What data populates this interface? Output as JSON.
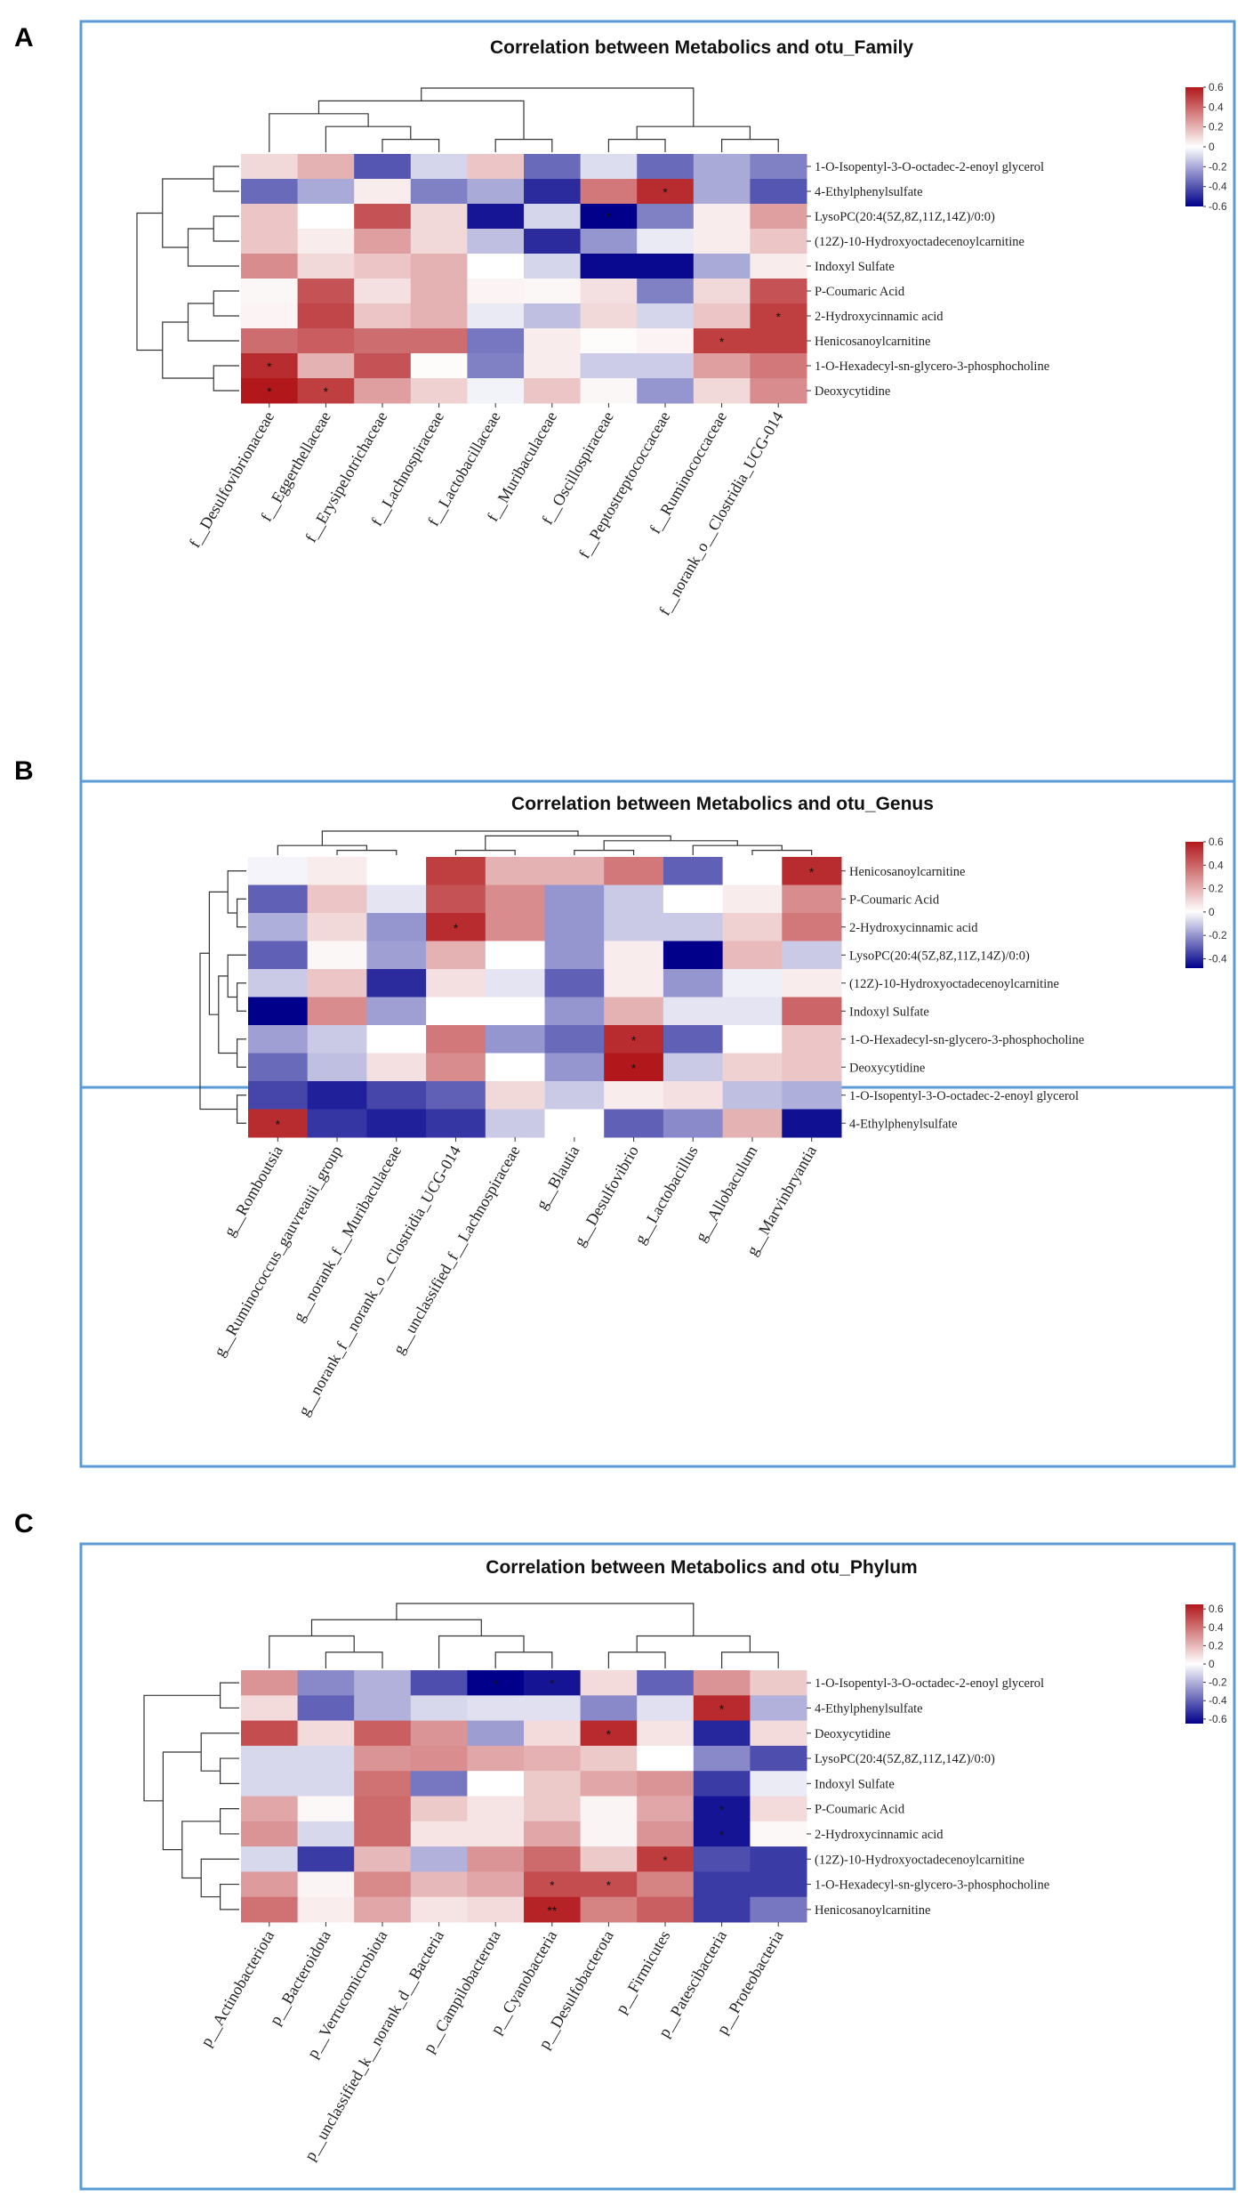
{
  "chart_data": [
    {
      "type": "heatmap",
      "panel_label": "A",
      "title": "Correlation between Metabolics and otu_Family",
      "rows": [
        "1-O-Isopentyl-3-O-octadec-2-enoyl glycerol",
        "4-Ethylphenylsulfate",
        "LysoPC(20:4(5Z,8Z,11Z,14Z)/0:0)",
        "(12Z)-10-Hydroxyoctadecenoylcarnitine",
        "Indoxyl Sulfate",
        "P-Coumaric Acid",
        "2-Hydroxycinnamic acid",
        "Henicosanoylcarnitine",
        "1-O-Hexadecyl-sn-glycero-3-phosphocholine",
        "Deoxycytidine"
      ],
      "columns": [
        "f__Desulfovibrionaceae",
        "f__Eggerthellaceae",
        "f__Erysipelotrichaceae",
        "f__Lachnospiraceae",
        "f__Lactobacillaceae",
        "f__Muribaculaceae",
        "f__Oscillospiraceae",
        "f__Peptostreptococcaceae",
        "f__Ruminococcaceae",
        "f__norank_o__Clostridia_UCG-014"
      ],
      "values": [
        [
          0.1,
          0.2,
          -0.4,
          -0.1,
          0.15,
          -0.35,
          -0.08,
          -0.35,
          -0.2,
          -0.3
        ],
        [
          -0.35,
          -0.2,
          0.05,
          -0.3,
          -0.2,
          -0.5,
          0.35,
          0.55,
          -0.2,
          -0.4
        ],
        [
          0.15,
          0,
          0.45,
          0.1,
          -0.55,
          -0.1,
          -0.62,
          -0.3,
          0.05,
          0.25
        ],
        [
          0.15,
          0.05,
          0.25,
          0.1,
          -0.15,
          -0.5,
          -0.25,
          -0.05,
          0.05,
          0.15
        ],
        [
          0.3,
          0.1,
          0.15,
          0.2,
          0,
          -0.1,
          -0.58,
          -0.58,
          -0.2,
          0.05
        ],
        [
          0.02,
          0.45,
          0.08,
          0.2,
          0.03,
          0.02,
          0.08,
          -0.3,
          0.1,
          0.45
        ],
        [
          0.03,
          0.48,
          0.15,
          0.2,
          -0.05,
          -0.15,
          0.1,
          -0.1,
          0.15,
          0.5
        ],
        [
          0.38,
          0.42,
          0.38,
          0.38,
          -0.32,
          0.05,
          0.01,
          0.03,
          0.5,
          0.5
        ],
        [
          0.55,
          0.2,
          0.45,
          0.01,
          -0.3,
          0.05,
          -0.12,
          -0.12,
          0.25,
          0.35
        ],
        [
          0.6,
          0.5,
          0.25,
          0.12,
          -0.03,
          0.15,
          0.02,
          -0.25,
          0.1,
          0.3
        ]
      ],
      "significance": [
        [
          1,
          7,
          "*"
        ],
        [
          2,
          6,
          "*"
        ],
        [
          6,
          9,
          "*"
        ],
        [
          7,
          8,
          "*"
        ],
        [
          8,
          0,
          "*"
        ],
        [
          9,
          0,
          "*"
        ],
        [
          9,
          1,
          "*"
        ]
      ],
      "color_scale": {
        "min": -0.6,
        "max": 0.6,
        "ticks": [
          0.6,
          0.4,
          0.2,
          0,
          -0.2,
          -0.4,
          -0.6
        ],
        "tick_labels": [
          "0.6",
          "0.4",
          "0.2",
          "0",
          "-0.2",
          "-0.4",
          "-0.6"
        ],
        "high_color": "#b2181b",
        "mid_color": "#ffffff",
        "low_color": "#00008b"
      },
      "row_dendrogram": [
        [
          [
            0,
            1
          ],
          [
            [
              2,
              3
            ],
            4
          ]
        ],
        [
          [
            [
              5,
              6
            ],
            7
          ],
          [
            8,
            9
          ]
        ]
      ],
      "col_dendrogram": [
        [
          [
            0,
            [
              1,
              [
                2,
                3
              ]
            ]
          ],
          [
            4,
            5
          ]
        ],
        [
          [
            6,
            7
          ],
          [
            8,
            9
          ]
        ]
      ]
    },
    {
      "type": "heatmap",
      "panel_label": "B",
      "title": "Correlation between Metabolics and otu_Genus",
      "rows": [
        "Henicosanoylcarnitine",
        "P-Coumaric Acid",
        "2-Hydroxycinnamic acid",
        "LysoPC(20:4(5Z,8Z,11Z,14Z)/0:0)",
        "(12Z)-10-Hydroxyoctadecenoylcarnitine",
        "Indoxyl Sulfate",
        "1-O-Hexadecyl-sn-glycero-3-phosphocholine",
        "Deoxycytidine",
        "1-O-Isopentyl-3-O-octadec-2-enoyl glycerol",
        "4-Ethylphenylsulfate"
      ],
      "columns": [
        "g__Romboutsia",
        "g__Ruminococcus_gauvreauii_group",
        "g__norank_f__Muribaculaceae",
        "g__norank_f__norank_o__Clostridia_UCG-014",
        "g__unclassified_f__Lachnospiraceae",
        "g__Blautia",
        "g__Desulfovibrio",
        "g__Lactobacillus",
        "g__Allobaculum",
        "g__Marvinbryantia"
      ],
      "values": [
        [
          -0.02,
          0.05,
          0,
          0.5,
          0.2,
          0.2,
          0.35,
          -0.3,
          0,
          0.55
        ],
        [
          -0.3,
          0.15,
          -0.05,
          0.45,
          0.3,
          -0.2,
          -0.1,
          0,
          0.05,
          0.3
        ],
        [
          -0.15,
          0.1,
          -0.2,
          0.55,
          0.3,
          -0.2,
          -0.1,
          -0.1,
          0.12,
          0.35
        ],
        [
          -0.3,
          0.02,
          -0.18,
          0.2,
          0,
          -0.2,
          0.05,
          -0.48,
          0.18,
          -0.1
        ],
        [
          -0.1,
          0.15,
          -0.4,
          0.08,
          -0.05,
          -0.3,
          0.05,
          -0.2,
          -0.03,
          0.05
        ],
        [
          -0.48,
          0.3,
          -0.18,
          0,
          0,
          -0.2,
          0.2,
          -0.05,
          -0.05,
          0.4
        ],
        [
          -0.18,
          -0.1,
          0,
          0.35,
          -0.2,
          -0.28,
          0.55,
          -0.3,
          0,
          0.15
        ],
        [
          -0.28,
          -0.12,
          0.08,
          0.3,
          0,
          -0.2,
          0.6,
          -0.1,
          0.12,
          0.15
        ],
        [
          -0.35,
          -0.42,
          -0.35,
          -0.3,
          0.1,
          -0.1,
          0.05,
          0.08,
          -0.12,
          -0.15
        ],
        [
          0.55,
          -0.38,
          -0.42,
          -0.38,
          -0.1,
          0,
          -0.3,
          -0.22,
          0.2,
          -0.45
        ]
      ],
      "significance": [
        [
          0,
          9,
          "*"
        ],
        [
          2,
          3,
          "*"
        ],
        [
          6,
          6,
          "*"
        ],
        [
          7,
          6,
          "*"
        ],
        [
          9,
          0,
          "*"
        ]
      ],
      "color_scale": {
        "min": -0.48,
        "max": 0.6,
        "ticks": [
          0.6,
          0.4,
          0.2,
          0,
          -0.2,
          -0.4
        ],
        "tick_labels": [
          "0.6",
          "0.4",
          "0.2",
          "0",
          "-0.2",
          "-0.4"
        ],
        "high_color": "#b2181b",
        "mid_color": "#ffffff",
        "low_color": "#00008b"
      },
      "row_dendrogram": [
        [
          [
            0,
            [
              1,
              2
            ]
          ],
          [
            [
              3,
              [
                4,
                5
              ]
            ],
            [
              6,
              7
            ]
          ]
        ],
        [
          8,
          9
        ]
      ],
      "col_dendrogram": [
        [
          0,
          [
            1,
            2
          ]
        ],
        [
          [
            3,
            4
          ],
          [
            [
              5,
              6
            ],
            [
              7,
              [
                8,
                9
              ]
            ]
          ]
        ]
      ]
    },
    {
      "type": "heatmap",
      "panel_label": "C",
      "title": "Correlation between Metabolics and otu_Phylum",
      "rows": [
        "1-O-Isopentyl-3-O-octadec-2-enoyl glycerol",
        "4-Ethylphenylsulfate",
        "Deoxycytidine",
        "LysoPC(20:4(5Z,8Z,11Z,14Z)/0:0)",
        "Indoxyl Sulfate",
        "P-Coumaric Acid",
        "2-Hydroxycinnamic acid",
        "(12Z)-10-Hydroxyoctadecenoylcarnitine",
        "1-O-Hexadecyl-sn-glycero-3-phosphocholine",
        "Henicosanoylcarnitine"
      ],
      "columns": [
        "p__Actinobacteriota",
        "p__Bacteroidota",
        "p__Verrucomicrobiota",
        "p__unclassified_k__norank_d__Bacteria",
        "p__Campilobacterota",
        "p__Cyanobacteria",
        "p__Desulfobacterota",
        "p__Firmicutes",
        "p__Patescibacteria",
        "p__Proteobacteria"
      ],
      "values": [
        [
          0.3,
          -0.3,
          -0.2,
          -0.45,
          -0.65,
          -0.6,
          0.1,
          -0.4,
          0.3,
          0.15
        ],
        [
          0.1,
          -0.4,
          -0.2,
          -0.1,
          -0.08,
          -0.08,
          -0.3,
          -0.08,
          0.6,
          -0.2
        ],
        [
          0.5,
          0.1,
          0.45,
          0.3,
          -0.25,
          0.1,
          0.6,
          0.08,
          -0.55,
          0.1
        ],
        [
          -0.1,
          -0.1,
          0.3,
          0.32,
          0.25,
          0.22,
          0.15,
          0,
          -0.3,
          -0.45
        ],
        [
          -0.1,
          -0.1,
          0.4,
          -0.35,
          0,
          0.15,
          0.25,
          0.3,
          -0.5,
          -0.05
        ],
        [
          0.25,
          0.02,
          0.42,
          0.15,
          0.08,
          0.15,
          0.03,
          0.25,
          -0.6,
          0.1
        ],
        [
          0.3,
          -0.1,
          0.42,
          0.08,
          0.08,
          0.25,
          0.03,
          0.3,
          -0.6,
          0.02
        ],
        [
          -0.1,
          -0.5,
          0.2,
          -0.2,
          0.3,
          0.42,
          0.15,
          0.55,
          -0.45,
          -0.5
        ],
        [
          0.28,
          0.03,
          0.33,
          0.2,
          0.25,
          0.5,
          0.5,
          0.35,
          -0.5,
          -0.5
        ],
        [
          0.4,
          0.05,
          0.25,
          0.08,
          0.1,
          0.62,
          0.35,
          0.45,
          -0.5,
          -0.35
        ]
      ],
      "significance": [
        [
          0,
          4,
          "*"
        ],
        [
          0,
          5,
          "*"
        ],
        [
          1,
          8,
          "*"
        ],
        [
          2,
          6,
          "*"
        ],
        [
          5,
          8,
          "*"
        ],
        [
          6,
          8,
          "*"
        ],
        [
          7,
          7,
          "*"
        ],
        [
          8,
          5,
          "*"
        ],
        [
          8,
          6,
          "*"
        ],
        [
          9,
          5,
          "**"
        ]
      ],
      "color_scale": {
        "min": -0.65,
        "max": 0.65,
        "ticks": [
          0.6,
          0.4,
          0.2,
          0,
          -0.2,
          -0.4,
          -0.6
        ],
        "tick_labels": [
          "0.6",
          "0.4",
          "0.2",
          "0",
          "-0.2",
          "-0.4",
          "-0.6"
        ],
        "high_color": "#b2181b",
        "mid_color": "#ffffff",
        "low_color": "#00008b"
      },
      "row_dendrogram": [
        [
          0,
          1
        ],
        [
          [
            2,
            [
              3,
              4
            ]
          ],
          [
            [
              5,
              6
            ],
            [
              7,
              [
                8,
                9
              ]
            ]
          ]
        ]
      ],
      "col_dendrogram": [
        [
          [
            0,
            [
              1,
              2
            ]
          ],
          [
            3,
            [
              4,
              5
            ]
          ]
        ],
        [
          [
            6,
            7
          ],
          [
            8,
            9
          ]
        ]
      ]
    }
  ]
}
